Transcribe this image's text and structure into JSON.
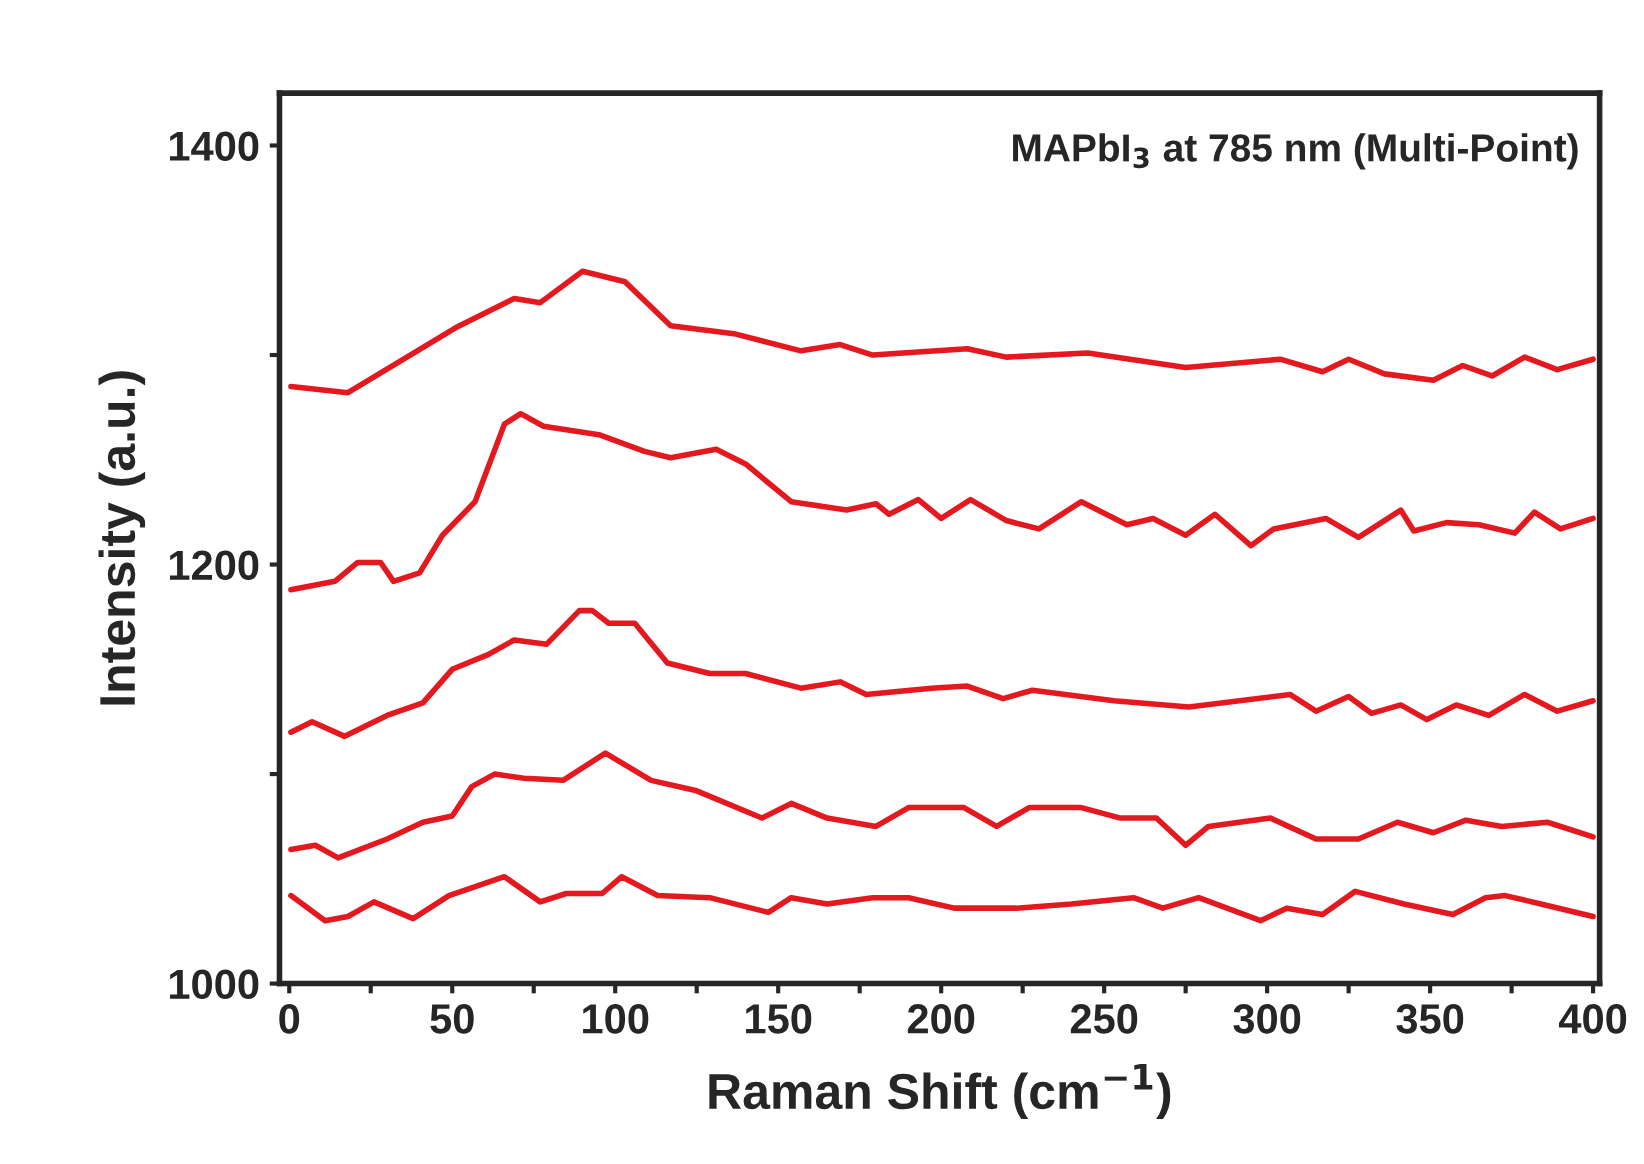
{
  "chart_data": {
    "type": "line",
    "xlabel": "Raman Shift (cm$^{−1}$)",
    "ylabel": "Intensity (a.u.)",
    "annotations": [
      "MAPbI$_{3}$ at 785 nm (Multi-Point)"
    ],
    "xlim": [
      -3,
      402
    ],
    "ylim": [
      1000,
      1425
    ],
    "xticks": [
      0,
      {
        "value": 25,
        "label": null
      },
      50,
      {
        "value": 75,
        "label": null
      },
      100,
      {
        "value": 125,
        "label": null
      },
      150,
      {
        "value": 175,
        "label": null
      },
      200,
      {
        "value": 225,
        "label": null
      },
      250,
      {
        "value": 275,
        "label": null
      },
      300,
      {
        "value": 325,
        "label": null
      },
      350,
      {
        "value": 375,
        "label": null
      },
      400
    ],
    "yticks": [
      1000,
      {
        "value": 1100,
        "label": null
      },
      1200,
      {
        "value": 1300,
        "label": null
      },
      1400
    ],
    "grid": false,
    "legend": false,
    "marker": "none",
    "line_style": "solid",
    "series": [
      {
        "color": "#e3191f",
        "x": [
          0.5,
          18,
          51,
          69,
          77,
          90,
          103,
          117,
          137,
          157,
          169,
          179,
          208,
          220,
          245,
          275,
          304,
          317,
          325,
          336,
          351,
          360,
          369,
          379,
          389,
          400
        ],
        "values": [
          1285,
          1282,
          1313,
          1327,
          1325,
          1340,
          1335,
          1314,
          1310,
          1302,
          1305,
          1300,
          1303,
          1299,
          1301,
          1294,
          1298,
          1292,
          1298,
          1291,
          1288,
          1295,
          1290,
          1299,
          1293,
          1298
        ]
      },
      {
        "color": "#e3191f",
        "x": [
          0.5,
          14,
          21,
          28,
          32,
          40,
          47,
          57,
          66,
          71,
          78,
          95,
          109,
          117,
          131,
          140,
          154,
          171,
          180,
          184,
          193,
          200,
          209,
          220,
          230,
          243,
          257,
          265,
          275,
          284,
          295,
          302,
          318,
          328,
          341,
          345,
          355,
          365,
          376,
          382,
          390,
          400
        ],
        "values": [
          1188,
          1192,
          1201,
          1201,
          1192,
          1196,
          1214,
          1230,
          1267,
          1272,
          1266,
          1262,
          1254,
          1251,
          1255,
          1248,
          1230,
          1226,
          1229,
          1224,
          1231,
          1222,
          1231,
          1221,
          1217,
          1230,
          1219,
          1222,
          1214,
          1224,
          1209,
          1217,
          1222,
          1213,
          1226,
          1216,
          1220,
          1219,
          1215,
          1225,
          1217,
          1222
        ]
      },
      {
        "color": "#e3191f",
        "x": [
          0.5,
          7,
          17,
          30,
          41,
          50,
          61,
          69,
          79,
          89,
          93,
          98,
          106,
          116,
          129,
          140,
          157,
          169,
          177,
          197,
          208,
          219,
          228,
          253,
          276,
          307,
          315,
          325,
          332,
          341,
          349,
          358,
          368,
          379,
          389,
          400
        ],
        "values": [
          1120,
          1125,
          1118,
          1128,
          1134,
          1150,
          1157,
          1164,
          1162,
          1178,
          1178,
          1172,
          1172,
          1153,
          1148,
          1148,
          1141,
          1144,
          1138,
          1141,
          1142,
          1136,
          1140,
          1135,
          1132,
          1138,
          1130,
          1137,
          1129,
          1133,
          1126,
          1133,
          1128,
          1138,
          1130,
          1135
        ]
      },
      {
        "color": "#e3191f",
        "x": [
          0.5,
          8,
          15,
          30,
          41,
          50,
          56,
          63,
          72,
          84,
          97,
          111,
          125,
          145,
          154,
          165,
          180,
          190,
          207,
          217,
          227,
          243,
          255,
          266,
          275,
          282,
          301,
          315,
          328,
          340,
          351,
          361,
          372,
          386,
          400
        ],
        "values": [
          1064,
          1066,
          1060,
          1069,
          1077,
          1080,
          1094,
          1100,
          1098,
          1097,
          1110,
          1097,
          1092,
          1079,
          1086,
          1079,
          1075,
          1084,
          1084,
          1075,
          1084,
          1084,
          1079,
          1079,
          1066,
          1075,
          1079,
          1069,
          1069,
          1077,
          1072,
          1078,
          1075,
          1077,
          1070
        ]
      },
      {
        "color": "#e3191f",
        "x": [
          0.5,
          11,
          18,
          26,
          38,
          49,
          66,
          77,
          85,
          96,
          102,
          113,
          129,
          147,
          154,
          165,
          179,
          190,
          204,
          223,
          240,
          259,
          268,
          279,
          298,
          306,
          317,
          327,
          342,
          357,
          367,
          373,
          384,
          400
        ],
        "values": [
          1042,
          1030,
          1032,
          1039,
          1031,
          1042,
          1051,
          1039,
          1043,
          1043,
          1051,
          1042,
          1041,
          1034,
          1041,
          1038,
          1041,
          1041,
          1036,
          1036,
          1038,
          1041,
          1036,
          1041,
          1030,
          1036,
          1033,
          1044,
          1038,
          1033,
          1041,
          1042,
          1038,
          1032
        ]
      }
    ]
  }
}
